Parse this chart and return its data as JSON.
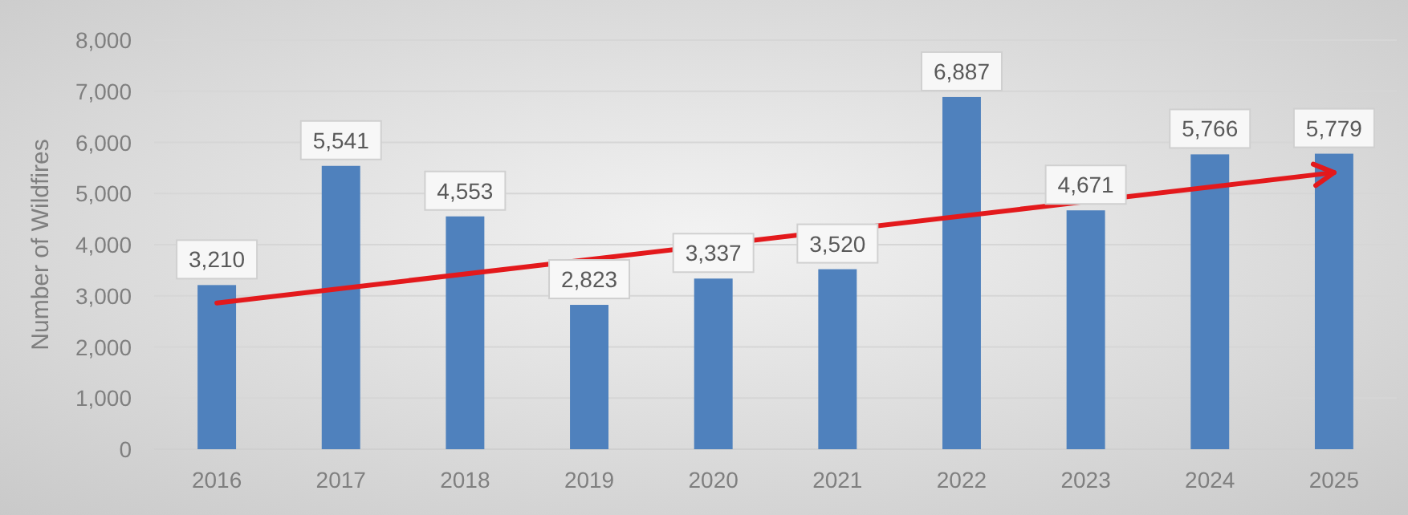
{
  "chart_data": {
    "type": "bar",
    "ylabel": "Number of Wildfires",
    "categories": [
      "2016",
      "2017",
      "2018",
      "2019",
      "2020",
      "2021",
      "2022",
      "2023",
      "2024",
      "2025"
    ],
    "series": [
      {
        "color": "#4f81bd",
        "values": [
          3210,
          5541,
          4553,
          2823,
          3337,
          3520,
          6887,
          4671,
          5766,
          5779
        ],
        "value_labels": [
          "3,210",
          "5,541",
          "4,553",
          "2,823",
          "3,337",
          "3,520",
          "6,887",
          "4,671",
          "5,766",
          "5,779"
        ]
      },
      {
        "type": "line",
        "color": "#e3191c",
        "values": [
          2860,
          null,
          null,
          null,
          null,
          null,
          null,
          null,
          null,
          5410
        ]
      }
    ],
    "ylim": [
      0,
      8000
    ],
    "yticks": [
      {
        "value": 0,
        "label": "0"
      },
      {
        "value": 1000,
        "label": "1,000"
      },
      {
        "value": 2000,
        "label": "2,000"
      },
      {
        "value": 3000,
        "label": "3,000"
      },
      {
        "value": 4000,
        "label": "4,000"
      },
      {
        "value": 5000,
        "label": "5,000"
      },
      {
        "value": 6000,
        "label": "6,000"
      },
      {
        "value": 7000,
        "label": "7,000"
      },
      {
        "value": 8000,
        "label": "8,000"
      }
    ],
    "grid": "y"
  }
}
